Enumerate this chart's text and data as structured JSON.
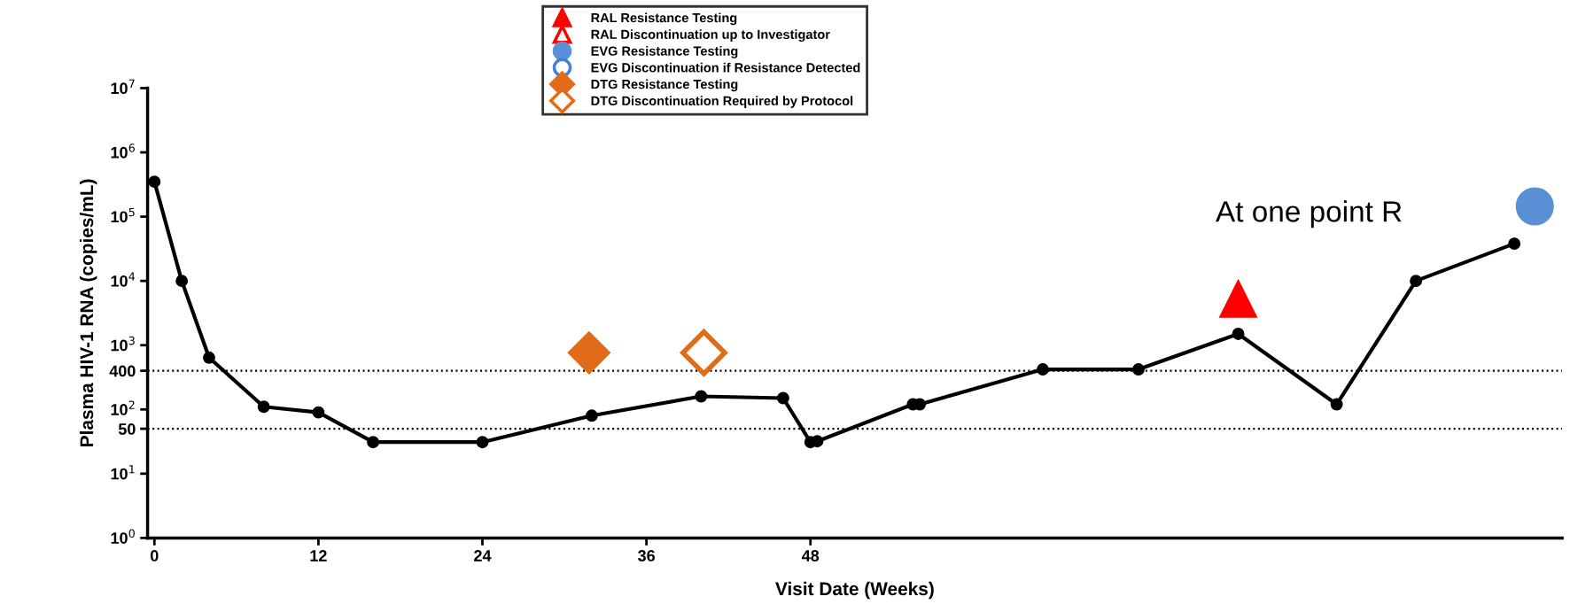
{
  "chart_data": {
    "type": "line",
    "xlabel": "Visit Date (Weeks)",
    "ylabel": "Plasma HIV-1 RNA (copies/mL)",
    "log": "y",
    "grid": false,
    "legend": "top",
    "xlim": [
      -0.5,
      103
    ],
    "xticks": [
      0,
      12,
      24,
      36,
      48
    ],
    "ylim": [
      1,
      10000000
    ],
    "yticks": [
      {
        "value": 1,
        "label": "10$^{0}$"
      },
      {
        "value": 10,
        "label": "10$^{1}$"
      },
      {
        "value": 50,
        "label": "50"
      },
      {
        "value": 100,
        "label": "10$^{2}$"
      },
      {
        "value": 400,
        "label": "400"
      },
      {
        "value": 1000,
        "label": "10$^{3}$"
      },
      {
        "value": 10000,
        "label": "10$^{4}$"
      },
      {
        "value": 100000,
        "label": "10$^{5}$"
      },
      {
        "value": 1000000,
        "label": "10$^{6}$"
      },
      {
        "value": 10000000,
        "label": "10$^{7}$"
      }
    ],
    "ref_lines": [
      {
        "axis": "y",
        "value": 400,
        "line_style": "dotted",
        "color": "#000000"
      },
      {
        "axis": "y",
        "value": 50,
        "line_style": "dotted",
        "color": "#000000"
      }
    ],
    "annotations": [
      "At one point R"
    ],
    "series": [
      {
        "color": "#000000",
        "marker": "circle",
        "x": [
          0,
          2,
          4,
          8,
          12,
          16,
          24,
          32,
          40,
          46,
          48,
          48.5,
          55.5,
          56,
          65,
          72,
          79.3,
          86.5,
          92.3,
          99.5
        ],
        "values": [
          350000,
          10000,
          640,
          110,
          90,
          31,
          31,
          80,
          160,
          150,
          31,
          32,
          120,
          120,
          420,
          420,
          1500,
          120,
          10000,
          38000
        ]
      },
      {
        "type": "scatter",
        "name": "RAL Resistance Testing",
        "color": "#ff0000",
        "marker": "triangle",
        "x": [
          79.3
        ],
        "values": [
          5300
        ]
      },
      {
        "type": "scatter",
        "name": "RAL Discontinuation up to Investigator",
        "color": "#ff0000",
        "marker": "triangle-open"
      },
      {
        "type": "scatter",
        "name": "EVG Resistance Testing",
        "color": "#5b8fd6",
        "marker": "circle",
        "x": [
          101
        ],
        "values": [
          145000
        ]
      },
      {
        "type": "scatter",
        "name": "EVG Discontinuation if Resistance Detected",
        "color": "#4a7fcf",
        "marker": "circle-open"
      },
      {
        "type": "scatter",
        "name": "DTG Resistance Testing",
        "color": "#e06c1a",
        "marker": "diamond",
        "x": [
          31.8
        ],
        "values": [
          760
        ]
      },
      {
        "type": "scatter",
        "name": "DTG Discontinuation Required by Protocol",
        "color": "#e06c1a",
        "marker": "diamond-open",
        "x": [
          40.2
        ],
        "values": [
          760
        ]
      }
    ]
  }
}
